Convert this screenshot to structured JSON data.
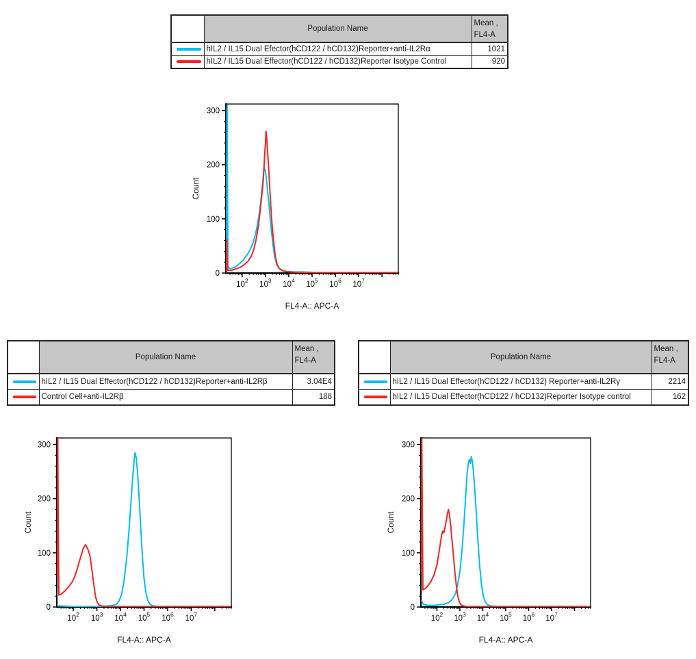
{
  "colors": {
    "cyan": "#00bff0",
    "red": "#f92321",
    "table_header_bg": "#c6c6c6",
    "border": "#262626",
    "axis": "#000000"
  },
  "tables": [
    {
      "id": "anti-IL2Ra",
      "headers": {
        "population": "Population Name",
        "mean_line1": "Mean ,",
        "mean_line2": "FL4-A"
      },
      "rows": [
        {
          "color": "cyan",
          "population": "hIL2 / IL15 Dual Efector(hCD122 / hCD132)Reporter+anti-IL2Rα",
          "mean": "1021"
        },
        {
          "color": "red",
          "population": "hIL2 / IL15 Dual Effector(hCD122 / hCD132)Reporter Isotype Control",
          "mean": "920"
        }
      ]
    },
    {
      "id": "anti-IL2Rb",
      "headers": {
        "population": "Population Name",
        "mean_line1": "Mean ,",
        "mean_line2": "FL4-A"
      },
      "rows": [
        {
          "color": "cyan",
          "population": "hIL2 / IL15 Dual Effector(hCD122 / hCD132)Reporter+anti-IL2Rβ",
          "mean": "3.04E4"
        },
        {
          "color": "red",
          "population": "Control Cell+anti-IL2Rβ",
          "mean": "188"
        }
      ]
    },
    {
      "id": "anti-IL2Rg",
      "headers": {
        "population": "Population Name",
        "mean_line1": "Mean ,",
        "mean_line2": "FL4-A"
      },
      "rows": [
        {
          "color": "cyan",
          "population": "hIL2 / IL15 Dual Effector(hCD122 / hCD132) Reporter+anti-IL2Rγ",
          "mean": "2214"
        },
        {
          "color": "red",
          "population": "hIL2 / IL15 Dual Effector(hCD122 / hCD132)Reporter Isotype control",
          "mean": "162"
        }
      ]
    }
  ],
  "chart_data": [
    {
      "type": "line",
      "subtype": "flow-histogram",
      "xlabel": "FL4-A:: APC-A",
      "ylabel": "Count",
      "x_scale": "log",
      "xlim_log10": [
        1.3,
        8.7
      ],
      "x_tick_exponents": [
        2,
        3,
        4,
        5,
        6,
        7
      ],
      "ylim": [
        0,
        312
      ],
      "yticks": [
        0,
        100,
        200,
        300
      ],
      "grid": false,
      "legend_position": "table-above",
      "series": [
        {
          "name": "hIL2 / IL15 Dual Efector(hCD122 / hCD132)Reporter+anti-IL2Rα",
          "color": "#00bff0",
          "peak_x_log10": 2.95,
          "peak_count": 195,
          "points": [
            [
              1.33,
              4
            ],
            [
              1.34,
              300
            ],
            [
              1.355,
              310
            ],
            [
              1.37,
              170
            ],
            [
              1.39,
              10
            ],
            [
              1.5,
              8
            ],
            [
              1.65,
              10
            ],
            [
              1.8,
              14
            ],
            [
              1.95,
              20
            ],
            [
              2.05,
              24
            ],
            [
              2.15,
              30
            ],
            [
              2.25,
              36
            ],
            [
              2.35,
              44
            ],
            [
              2.45,
              54
            ],
            [
              2.55,
              68
            ],
            [
              2.65,
              88
            ],
            [
              2.72,
              106
            ],
            [
              2.78,
              125
            ],
            [
              2.84,
              150
            ],
            [
              2.9,
              176
            ],
            [
              2.95,
              195
            ],
            [
              3.0,
              188
            ],
            [
              3.06,
              166
            ],
            [
              3.12,
              140
            ],
            [
              3.18,
              112
            ],
            [
              3.25,
              80
            ],
            [
              3.32,
              52
            ],
            [
              3.4,
              30
            ],
            [
              3.48,
              16
            ],
            [
              3.58,
              9
            ],
            [
              3.72,
              5
            ],
            [
              3.9,
              3
            ],
            [
              4.2,
              2
            ],
            [
              4.6,
              2
            ],
            [
              5.2,
              1
            ],
            [
              6.0,
              1
            ],
            [
              7.0,
              1
            ],
            [
              8.65,
              1
            ]
          ]
        },
        {
          "name": "hIL2 / IL15 Dual Effector(hCD122 / hCD132)Reporter Isotype Control",
          "color": "#f92321",
          "peak_x_log10": 3.02,
          "peak_count": 262,
          "points": [
            [
              1.33,
              2
            ],
            [
              1.34,
              62
            ],
            [
              1.36,
              30
            ],
            [
              1.38,
              5
            ],
            [
              1.55,
              5
            ],
            [
              1.75,
              8
            ],
            [
              1.95,
              11
            ],
            [
              2.1,
              16
            ],
            [
              2.25,
              22
            ],
            [
              2.4,
              32
            ],
            [
              2.5,
              44
            ],
            [
              2.6,
              62
            ],
            [
              2.7,
              88
            ],
            [
              2.78,
              118
            ],
            [
              2.84,
              142
            ],
            [
              2.9,
              168
            ],
            [
              2.94,
              196
            ],
            [
              2.98,
              228
            ],
            [
              3.0,
              238
            ],
            [
              3.02,
              262
            ],
            [
              3.05,
              252
            ],
            [
              3.08,
              232
            ],
            [
              3.12,
              205
            ],
            [
              3.17,
              168
            ],
            [
              3.22,
              130
            ],
            [
              3.28,
              92
            ],
            [
              3.35,
              58
            ],
            [
              3.42,
              32
            ],
            [
              3.5,
              16
            ],
            [
              3.6,
              8
            ],
            [
              3.75,
              4
            ],
            [
              4.0,
              2
            ],
            [
              4.5,
              1
            ],
            [
              5.5,
              1
            ],
            [
              6.5,
              1
            ],
            [
              8.65,
              1
            ]
          ]
        }
      ]
    },
    {
      "type": "line",
      "subtype": "flow-histogram",
      "xlabel": "FL4-A:: APC-A",
      "ylabel": "Count",
      "x_scale": "log",
      "xlim_log10": [
        1.3,
        8.7
      ],
      "x_tick_exponents": [
        2,
        3,
        4,
        5,
        6,
        7
      ],
      "ylim": [
        0,
        312
      ],
      "yticks": [
        0,
        100,
        200,
        300
      ],
      "grid": false,
      "legend_position": "table-above",
      "series": [
        {
          "name": "hIL2 / IL15 Dual Effector(hCD122 / hCD132)Reporter+anti-IL2Rβ",
          "color": "#00bff0",
          "peak_x_log10": 4.62,
          "peak_count": 285,
          "points": [
            [
              1.33,
              2
            ],
            [
              2.0,
              1
            ],
            [
              3.0,
              1
            ],
            [
              3.5,
              2
            ],
            [
              3.7,
              3
            ],
            [
              3.85,
              6
            ],
            [
              3.95,
              12
            ],
            [
              4.05,
              24
            ],
            [
              4.15,
              48
            ],
            [
              4.25,
              85
            ],
            [
              4.35,
              135
            ],
            [
              4.45,
              195
            ],
            [
              4.52,
              240
            ],
            [
              4.58,
              272
            ],
            [
              4.62,
              285
            ],
            [
              4.67,
              275
            ],
            [
              4.73,
              245
            ],
            [
              4.8,
              195
            ],
            [
              4.87,
              138
            ],
            [
              4.94,
              88
            ],
            [
              5.0,
              52
            ],
            [
              5.08,
              26
            ],
            [
              5.16,
              12
            ],
            [
              5.25,
              5
            ],
            [
              5.38,
              2
            ],
            [
              5.6,
              1
            ],
            [
              6.5,
              1
            ],
            [
              7.5,
              1
            ],
            [
              8.65,
              1
            ]
          ]
        },
        {
          "name": "Control Cell+anti-IL2Rβ",
          "color": "#f92321",
          "peak_x_log10": 2.52,
          "peak_count": 115,
          "points": [
            [
              1.33,
              55
            ],
            [
              1.34,
              315
            ],
            [
              1.36,
              140
            ],
            [
              1.39,
              22
            ],
            [
              1.5,
              24
            ],
            [
              1.65,
              30
            ],
            [
              1.8,
              37
            ],
            [
              1.95,
              46
            ],
            [
              2.05,
              55
            ],
            [
              2.15,
              68
            ],
            [
              2.25,
              83
            ],
            [
              2.35,
              98
            ],
            [
              2.42,
              108
            ],
            [
              2.48,
              113
            ],
            [
              2.52,
              115
            ],
            [
              2.58,
              110
            ],
            [
              2.64,
              104
            ],
            [
              2.7,
              96
            ],
            [
              2.76,
              78
            ],
            [
              2.82,
              58
            ],
            [
              2.88,
              38
            ],
            [
              2.94,
              20
            ],
            [
              3.0,
              10
            ],
            [
              3.08,
              4
            ],
            [
              3.18,
              2
            ],
            [
              3.35,
              1
            ],
            [
              4.0,
              1
            ],
            [
              5.0,
              1
            ],
            [
              6.0,
              1
            ],
            [
              7.0,
              1
            ],
            [
              8.65,
              1
            ]
          ]
        }
      ]
    },
    {
      "type": "line",
      "subtype": "flow-histogram",
      "xlabel": "FL4-A:: APC-A",
      "ylabel": "Count",
      "x_scale": "log",
      "xlim_log10": [
        1.3,
        8.7
      ],
      "x_tick_exponents": [
        2,
        3,
        4,
        5,
        6,
        7
      ],
      "ylim": [
        0,
        312
      ],
      "yticks": [
        0,
        100,
        200,
        300
      ],
      "grid": false,
      "legend_position": "table-above",
      "series": [
        {
          "name": "hIL2 / IL15 Dual Effector(hCD122 / hCD132) Reporter+anti-IL2Rγ",
          "color": "#00bff0",
          "peak_x_log10": 3.5,
          "peak_count": 278,
          "points": [
            [
              1.33,
              12
            ],
            [
              1.4,
              5
            ],
            [
              1.6,
              3
            ],
            [
              1.9,
              3
            ],
            [
              2.1,
              4
            ],
            [
              2.3,
              5
            ],
            [
              2.5,
              8
            ],
            [
              2.65,
              13
            ],
            [
              2.8,
              24
            ],
            [
              2.9,
              40
            ],
            [
              3.0,
              65
            ],
            [
              3.1,
              108
            ],
            [
              3.18,
              155
            ],
            [
              3.26,
              210
            ],
            [
              3.32,
              248
            ],
            [
              3.38,
              268
            ],
            [
              3.42,
              272
            ],
            [
              3.46,
              265
            ],
            [
              3.5,
              278
            ],
            [
              3.55,
              268
            ],
            [
              3.62,
              235
            ],
            [
              3.7,
              185
            ],
            [
              3.78,
              128
            ],
            [
              3.86,
              78
            ],
            [
              3.94,
              42
            ],
            [
              4.02,
              20
            ],
            [
              4.1,
              10
            ],
            [
              4.2,
              4
            ],
            [
              4.35,
              2
            ],
            [
              4.6,
              1
            ],
            [
              5.5,
              1
            ],
            [
              6.5,
              1
            ],
            [
              8.65,
              1
            ]
          ]
        },
        {
          "name": "hIL2 / IL15 Dual Effector(hCD122 / hCD132)Reporter Isotype control",
          "color": "#f92321",
          "peak_x_log10": 2.5,
          "peak_count": 180,
          "points": [
            [
              1.33,
              65
            ],
            [
              1.34,
              310
            ],
            [
              1.36,
              195
            ],
            [
              1.39,
              32
            ],
            [
              1.5,
              34
            ],
            [
              1.62,
              40
            ],
            [
              1.75,
              48
            ],
            [
              1.88,
              60
            ],
            [
              2.0,
              78
            ],
            [
              2.08,
              98
            ],
            [
              2.15,
              118
            ],
            [
              2.2,
              132
            ],
            [
              2.25,
              140
            ],
            [
              2.3,
              137
            ],
            [
              2.35,
              146
            ],
            [
              2.4,
              158
            ],
            [
              2.45,
              170
            ],
            [
              2.5,
              180
            ],
            [
              2.54,
              172
            ],
            [
              2.6,
              150
            ],
            [
              2.66,
              122
            ],
            [
              2.72,
              94
            ],
            [
              2.78,
              65
            ],
            [
              2.84,
              42
            ],
            [
              2.9,
              22
            ],
            [
              2.97,
              10
            ],
            [
              3.05,
              4
            ],
            [
              3.15,
              2
            ],
            [
              3.3,
              1
            ],
            [
              4.0,
              1
            ],
            [
              5.0,
              1
            ],
            [
              6.0,
              1
            ],
            [
              7.0,
              1
            ],
            [
              8.65,
              1
            ]
          ]
        }
      ]
    }
  ]
}
